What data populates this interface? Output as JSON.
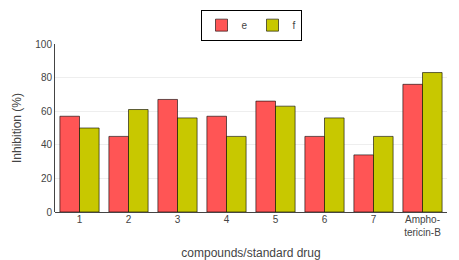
{
  "chart_data": {
    "type": "bar",
    "categories": [
      "1",
      "2",
      "3",
      "4",
      "5",
      "6",
      "7",
      "Ampho-\ntericin-B"
    ],
    "series": [
      {
        "name": "e",
        "color": "#FF5555",
        "values": [
          57,
          45,
          67,
          57,
          66,
          45,
          34,
          76
        ]
      },
      {
        "name": "f",
        "color": "#C8C800",
        "values": [
          50,
          61,
          56,
          45,
          63,
          56,
          45,
          83
        ]
      }
    ],
    "xlabel": "compounds/standard drug",
    "ylabel": "Inhibition (%)",
    "ylim": [
      0,
      100
    ],
    "yticks": [
      0,
      20,
      40,
      60,
      80,
      100
    ],
    "grid": true,
    "legend": "top"
  }
}
